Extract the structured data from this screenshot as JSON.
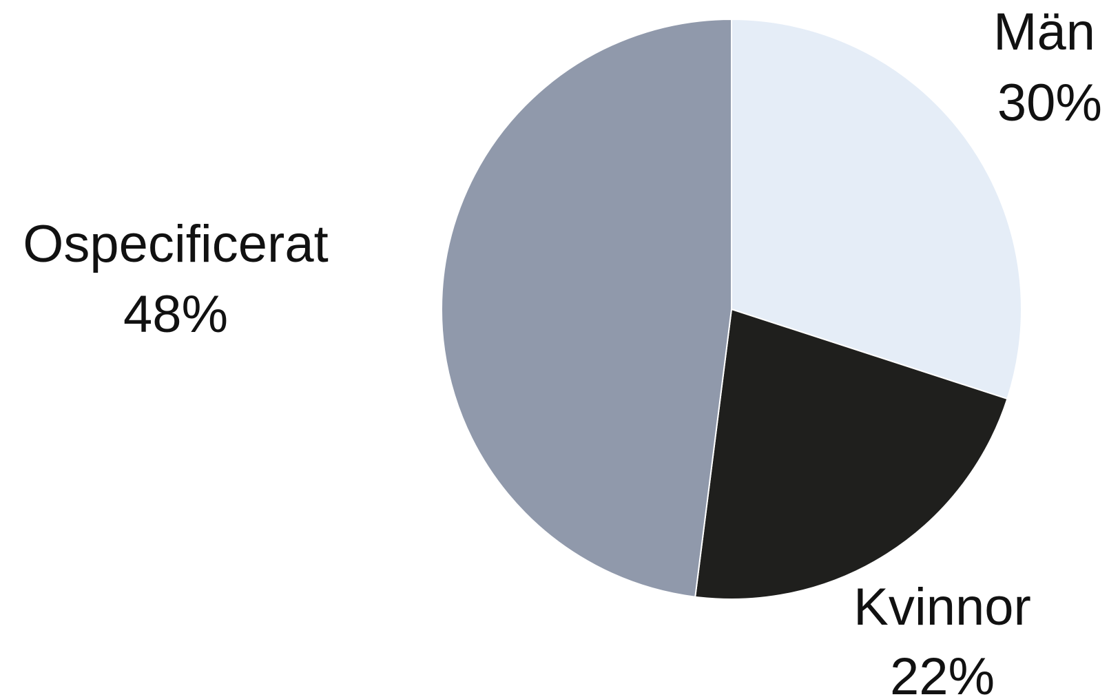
{
  "chart_data": {
    "type": "pie",
    "categories": [
      "Män",
      "Kvinnor",
      "Ospecificerat"
    ],
    "values": [
      30,
      22,
      48
    ],
    "value_labels": [
      "30%",
      "22%",
      "48%"
    ],
    "colors": [
      "#e5edf7",
      "#1f1f1d",
      "#9099ab"
    ],
    "start": "12 o'clock",
    "direction": "clockwise",
    "legend": "none",
    "title": ""
  }
}
